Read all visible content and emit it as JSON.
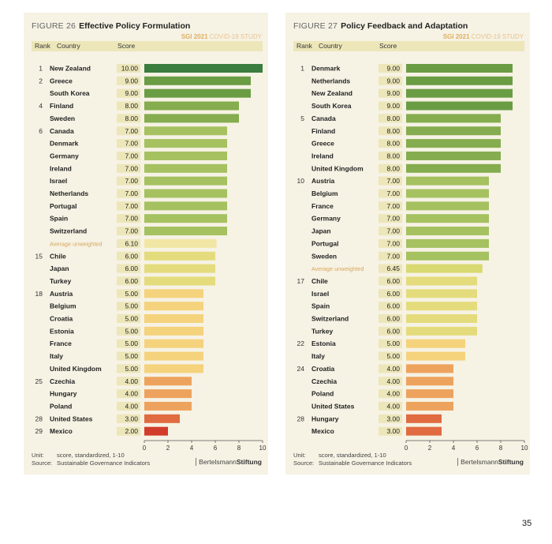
{
  "page_number": "35",
  "chart_data": [
    {
      "type": "bar",
      "figure_number": "FIGURE 26",
      "title": "Effective Policy Formulation",
      "study_label_a": "SGI 2021",
      "study_label_b": "COVID-19 STUDY",
      "header": {
        "rank": "Rank",
        "country": "Country",
        "score": "Score"
      },
      "xlim": [
        0,
        10
      ],
      "x_ticks": [
        "0",
        "2",
        "4",
        "6",
        "8",
        "10"
      ],
      "rows": [
        {
          "rank": "1",
          "country": "New Zealand",
          "score": "10.00",
          "value": 10.0,
          "color": "#3a7d3e"
        },
        {
          "rank": "2",
          "country": "Greece",
          "score": "9.00",
          "value": 9.0,
          "color": "#6a9c44"
        },
        {
          "rank": "",
          "country": "South Korea",
          "score": "9.00",
          "value": 9.0,
          "color": "#6a9c44"
        },
        {
          "rank": "4",
          "country": "Finland",
          "score": "8.00",
          "value": 8.0,
          "color": "#85ac4e"
        },
        {
          "rank": "",
          "country": "Sweden",
          "score": "8.00",
          "value": 8.0,
          "color": "#85ac4e"
        },
        {
          "rank": "6",
          "country": "Canada",
          "score": "7.00",
          "value": 7.0,
          "color": "#a5c160"
        },
        {
          "rank": "",
          "country": "Denmark",
          "score": "7.00",
          "value": 7.0,
          "color": "#a5c160"
        },
        {
          "rank": "",
          "country": "Germany",
          "score": "7.00",
          "value": 7.0,
          "color": "#a5c160"
        },
        {
          "rank": "",
          "country": "Ireland",
          "score": "7.00",
          "value": 7.0,
          "color": "#a5c160"
        },
        {
          "rank": "",
          "country": "Israel",
          "score": "7.00",
          "value": 7.0,
          "color": "#a5c160"
        },
        {
          "rank": "",
          "country": "Netherlands",
          "score": "7.00",
          "value": 7.0,
          "color": "#a5c160"
        },
        {
          "rank": "",
          "country": "Portugal",
          "score": "7.00",
          "value": 7.0,
          "color": "#a5c160"
        },
        {
          "rank": "",
          "country": "Spain",
          "score": "7.00",
          "value": 7.0,
          "color": "#a5c160"
        },
        {
          "rank": "",
          "country": "Switzerland",
          "score": "7.00",
          "value": 7.0,
          "color": "#a5c160"
        },
        {
          "rank": "",
          "country": "Average unweighted",
          "score": "6.10",
          "value": 6.1,
          "color": "#f2e6a4",
          "average": true
        },
        {
          "rank": "15",
          "country": "Chile",
          "score": "6.00",
          "value": 6.0,
          "color": "#e4dc7c"
        },
        {
          "rank": "",
          "country": "Japan",
          "score": "6.00",
          "value": 6.0,
          "color": "#e4dc7c"
        },
        {
          "rank": "",
          "country": "Turkey",
          "score": "6.00",
          "value": 6.0,
          "color": "#e4dc7c"
        },
        {
          "rank": "18",
          "country": "Austria",
          "score": "5.00",
          "value": 5.0,
          "color": "#f5d27c"
        },
        {
          "rank": "",
          "country": "Belgium",
          "score": "5.00",
          "value": 5.0,
          "color": "#f5d27c"
        },
        {
          "rank": "",
          "country": "Croatia",
          "score": "5.00",
          "value": 5.0,
          "color": "#f5d27c"
        },
        {
          "rank": "",
          "country": "Estonia",
          "score": "5.00",
          "value": 5.0,
          "color": "#f5d27c"
        },
        {
          "rank": "",
          "country": "France",
          "score": "5.00",
          "value": 5.0,
          "color": "#f5d27c"
        },
        {
          "rank": "",
          "country": "Italy",
          "score": "5.00",
          "value": 5.0,
          "color": "#f5d27c"
        },
        {
          "rank": "",
          "country": "United Kingdom",
          "score": "5.00",
          "value": 5.0,
          "color": "#f5d27c"
        },
        {
          "rank": "25",
          "country": "Czechia",
          "score": "4.00",
          "value": 4.0,
          "color": "#eda35e"
        },
        {
          "rank": "",
          "country": "Hungary",
          "score": "4.00",
          "value": 4.0,
          "color": "#eda35e"
        },
        {
          "rank": "",
          "country": "Poland",
          "score": "4.00",
          "value": 4.0,
          "color": "#eda35e"
        },
        {
          "rank": "28",
          "country": "United States",
          "score": "3.00",
          "value": 3.0,
          "color": "#e06b40"
        },
        {
          "rank": "29",
          "country": "Mexico",
          "score": "2.00",
          "value": 2.0,
          "color": "#d23c2a"
        }
      ],
      "unit_label": "Unit:",
      "unit_text": "score, standardized, 1-10",
      "source_label": "Source:",
      "source_text": "Sustainable Governance Indicators",
      "brand_a": "Bertelsmann",
      "brand_b": "Stiftung"
    },
    {
      "type": "bar",
      "figure_number": "FIGURE 27",
      "title": "Policy Feedback and Adaptation",
      "study_label_a": "SGI 2021",
      "study_label_b": "COVID-19 STUDY",
      "header": {
        "rank": "Rank",
        "country": "Country",
        "score": "Score"
      },
      "xlim": [
        0,
        10
      ],
      "x_ticks": [
        "0",
        "2",
        "4",
        "6",
        "8",
        "10"
      ],
      "rows": [
        {
          "rank": "1",
          "country": "Denmark",
          "score": "9.00",
          "value": 9.0,
          "color": "#6a9c44"
        },
        {
          "rank": "",
          "country": "Netherlands",
          "score": "9.00",
          "value": 9.0,
          "color": "#6a9c44"
        },
        {
          "rank": "",
          "country": "New Zealand",
          "score": "9.00",
          "value": 9.0,
          "color": "#6a9c44"
        },
        {
          "rank": "",
          "country": "South Korea",
          "score": "9.00",
          "value": 9.0,
          "color": "#6a9c44"
        },
        {
          "rank": "5",
          "country": "Canada",
          "score": "8.00",
          "value": 8.0,
          "color": "#85ac4e"
        },
        {
          "rank": "",
          "country": "Finland",
          "score": "8.00",
          "value": 8.0,
          "color": "#85ac4e"
        },
        {
          "rank": "",
          "country": "Greece",
          "score": "8.00",
          "value": 8.0,
          "color": "#85ac4e"
        },
        {
          "rank": "",
          "country": "Ireland",
          "score": "8.00",
          "value": 8.0,
          "color": "#85ac4e"
        },
        {
          "rank": "",
          "country": "United Kingdom",
          "score": "8.00",
          "value": 8.0,
          "color": "#85ac4e"
        },
        {
          "rank": "10",
          "country": "Austria",
          "score": "7.00",
          "value": 7.0,
          "color": "#a5c160"
        },
        {
          "rank": "",
          "country": "Belgium",
          "score": "7.00",
          "value": 7.0,
          "color": "#a5c160"
        },
        {
          "rank": "",
          "country": "France",
          "score": "7.00",
          "value": 7.0,
          "color": "#a5c160"
        },
        {
          "rank": "",
          "country": "Germany",
          "score": "7.00",
          "value": 7.0,
          "color": "#a5c160"
        },
        {
          "rank": "",
          "country": "Japan",
          "score": "7.00",
          "value": 7.0,
          "color": "#a5c160"
        },
        {
          "rank": "",
          "country": "Portugal",
          "score": "7.00",
          "value": 7.0,
          "color": "#a5c160"
        },
        {
          "rank": "",
          "country": "Sweden",
          "score": "7.00",
          "value": 7.0,
          "color": "#a5c160"
        },
        {
          "rank": "",
          "country": "Average unweighted",
          "score": "6.45",
          "value": 6.45,
          "color": "#d8d970",
          "average": true
        },
        {
          "rank": "17",
          "country": "Chile",
          "score": "6.00",
          "value": 6.0,
          "color": "#e4dc7c"
        },
        {
          "rank": "",
          "country": "Israel",
          "score": "6.00",
          "value": 6.0,
          "color": "#e4dc7c"
        },
        {
          "rank": "",
          "country": "Spain",
          "score": "6.00",
          "value": 6.0,
          "color": "#e4dc7c"
        },
        {
          "rank": "",
          "country": "Switzerland",
          "score": "6.00",
          "value": 6.0,
          "color": "#e4dc7c"
        },
        {
          "rank": "",
          "country": "Turkey",
          "score": "6.00",
          "value": 6.0,
          "color": "#e4dc7c"
        },
        {
          "rank": "22",
          "country": "Estonia",
          "score": "5.00",
          "value": 5.0,
          "color": "#f5d27c"
        },
        {
          "rank": "",
          "country": "Italy",
          "score": "5.00",
          "value": 5.0,
          "color": "#f5d27c"
        },
        {
          "rank": "24",
          "country": "Croatia",
          "score": "4.00",
          "value": 4.0,
          "color": "#eda35e"
        },
        {
          "rank": "",
          "country": "Czechia",
          "score": "4.00",
          "value": 4.0,
          "color": "#eda35e"
        },
        {
          "rank": "",
          "country": "Poland",
          "score": "4.00",
          "value": 4.0,
          "color": "#eda35e"
        },
        {
          "rank": "",
          "country": "United States",
          "score": "4.00",
          "value": 4.0,
          "color": "#eda35e"
        },
        {
          "rank": "28",
          "country": "Hungary",
          "score": "3.00",
          "value": 3.0,
          "color": "#e06b40"
        },
        {
          "rank": "",
          "country": "Mexico",
          "score": "3.00",
          "value": 3.0,
          "color": "#e06b40"
        }
      ],
      "unit_label": "Unit:",
      "unit_text": "score, standardized, 1-10",
      "source_label": "Source:",
      "source_text": "Sustainable Governance Indicators",
      "brand_a": "Bertelsmann",
      "brand_b": "Stiftung"
    }
  ]
}
